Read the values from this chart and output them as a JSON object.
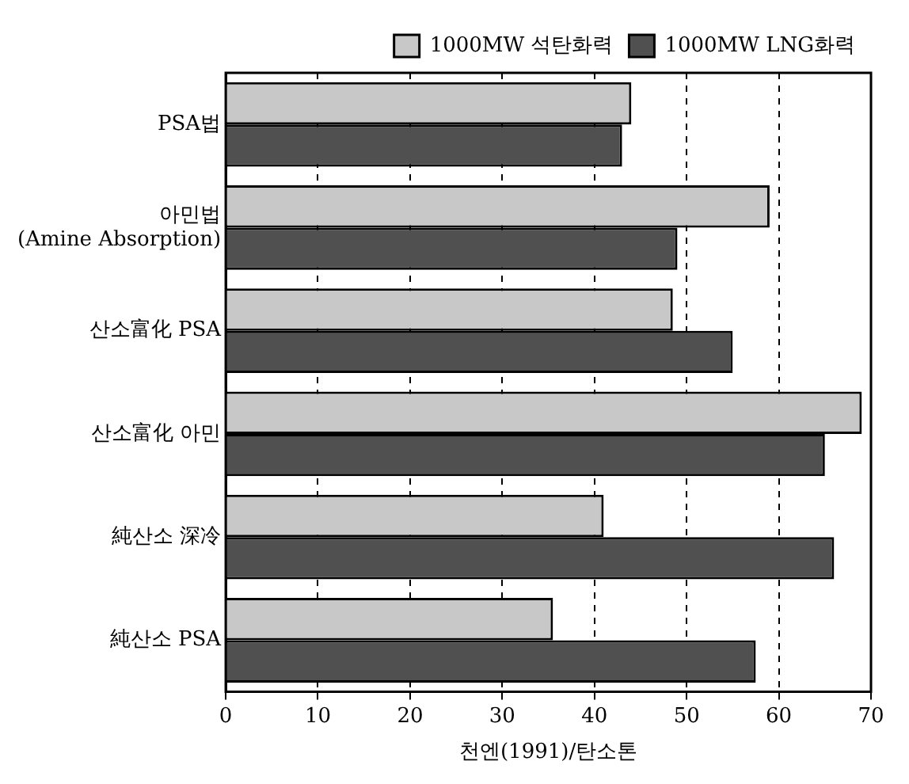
{
  "chart_data": {
    "type": "bar",
    "orientation": "horizontal",
    "xlabel": "천엔(1991)/탄소톤",
    "categories": [
      "PSA법",
      "아민법\n(Amine Absorption)",
      "산소富化 PSA",
      "산소富化 아민",
      "純산소 深冷",
      "純산소 PSA"
    ],
    "series": [
      {
        "name": "1000MW 석탄화력",
        "color": "#c8c8c8",
        "values": [
          44,
          59,
          48.5,
          69,
          41,
          35.5
        ]
      },
      {
        "name": "1000MW LNG화력",
        "color": "#505050",
        "values": [
          43,
          49,
          55,
          65,
          66,
          57.5
        ]
      }
    ],
    "xlim": [
      0,
      70
    ],
    "xticks": [
      0,
      10,
      20,
      30,
      40,
      50,
      60,
      70
    ],
    "grid": "x",
    "line_style": "dashed",
    "legend": "top right"
  }
}
